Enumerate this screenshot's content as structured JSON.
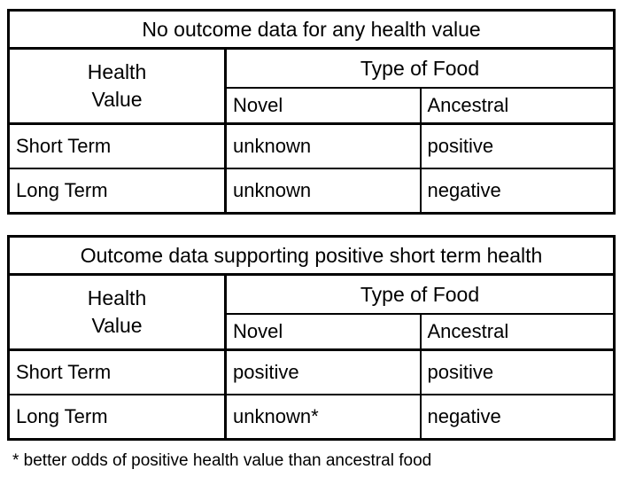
{
  "tables": [
    {
      "title": "No outcome data for any health value",
      "row_header": "Health\nValue",
      "col_group": "Type of Food",
      "columns": [
        "Novel",
        "Ancestral"
      ],
      "rows": [
        {
          "label": "Short Term",
          "values": [
            "unknown",
            "positive"
          ]
        },
        {
          "label": "Long Term",
          "values": [
            "unknown",
            "negative"
          ]
        }
      ]
    },
    {
      "title": "Outcome data supporting positive short term health",
      "row_header": "Health\nValue",
      "col_group": "Type of Food",
      "columns": [
        "Novel",
        "Ancestral"
      ],
      "rows": [
        {
          "label": "Short Term",
          "values": [
            "positive",
            "positive"
          ]
        },
        {
          "label": "Long Term",
          "values": [
            "unknown*",
            "negative"
          ]
        }
      ]
    }
  ],
  "footnote": "* better odds of positive health value than ancestral food",
  "colors": {
    "border": "#000000",
    "background": "#ffffff",
    "text": "#000000"
  }
}
